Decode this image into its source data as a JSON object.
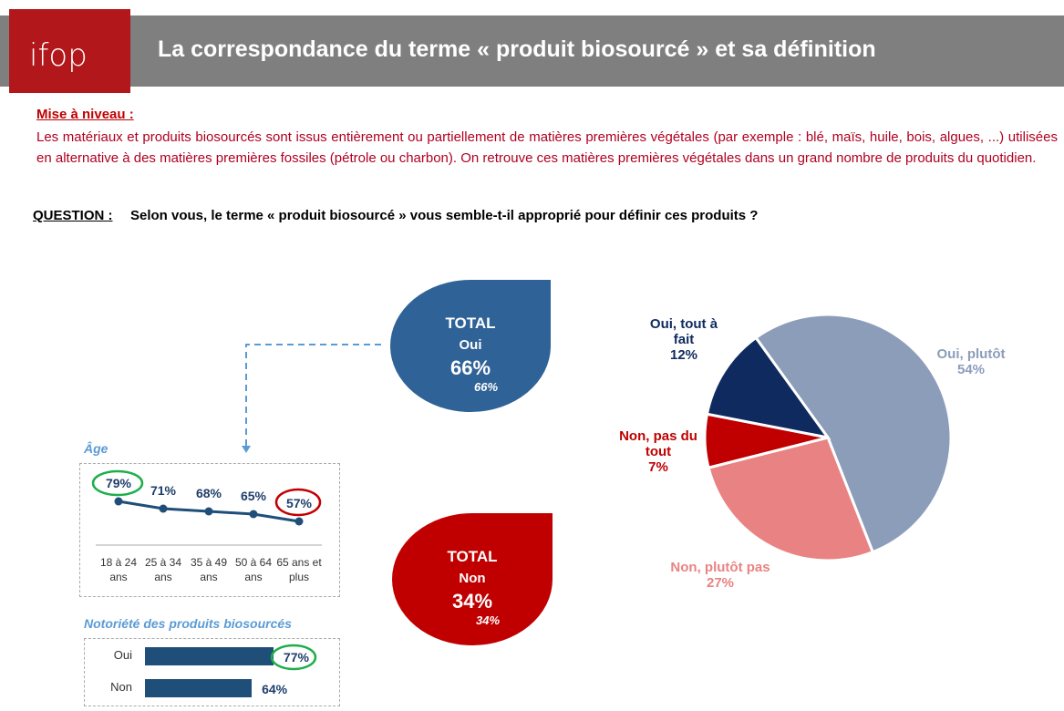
{
  "header": {
    "logo_text": "ifop",
    "title": "La correspondance du terme « produit biosourcé » et sa définition"
  },
  "intro": {
    "heading": "Mise à niveau :",
    "text": "Les matériaux et produits biosourcés sont issus entièrement ou partiellement de matières premières végétales (par exemple : blé, maïs, huile, bois, algues, ...) utilisées en alternative à des matières premières fossiles (pétrole ou charbon). On retrouve ces matières premières végétales dans un grand nombre de produits du quotidien."
  },
  "question": {
    "label": "QUESTION :",
    "text": "Selon vous, le terme « produit biosourcé » vous semble-t-il approprié pour définir ces produits ?"
  },
  "totals": {
    "oui": {
      "title": "TOTAL",
      "label": "Oui",
      "value": "66%",
      "sub": "66%"
    },
    "non": {
      "title": "TOTAL",
      "label": "Non",
      "value": "34%",
      "sub": "34%"
    }
  },
  "colors": {
    "oui_plutot": "#8c9dba",
    "non_plutot_pas": "#e98383",
    "non_pas_du_tout": "#c00000",
    "oui_tout_a_fait": "#0f2a5e",
    "line": "#1f4e79"
  },
  "chart_data": [
    {
      "type": "pie",
      "title": "",
      "slices": [
        {
          "label": "Oui, plutôt",
          "value": 54,
          "text": "54%"
        },
        {
          "label": "Non, plutôt pas",
          "value": 27,
          "text": "27%"
        },
        {
          "label": "Non, pas du tout",
          "value": 7,
          "text": "7%"
        },
        {
          "label": "Oui, tout à fait",
          "value": 12,
          "text": "12%"
        }
      ]
    },
    {
      "type": "line",
      "title": "Âge",
      "categories": [
        "18 à 24 ans",
        "25 à 34 ans",
        "35 à 49 ans",
        "50 à 64 ans",
        "65 ans et plus"
      ],
      "values": [
        79,
        71,
        68,
        65,
        57
      ],
      "labels": [
        "79%",
        "71%",
        "68%",
        "65%",
        "57%"
      ]
    },
    {
      "type": "bar",
      "title": "Notoriété des produits biosourcés",
      "categories": [
        "Oui",
        "Non"
      ],
      "values": [
        77,
        64
      ],
      "labels": [
        "77%",
        "64%"
      ]
    }
  ]
}
